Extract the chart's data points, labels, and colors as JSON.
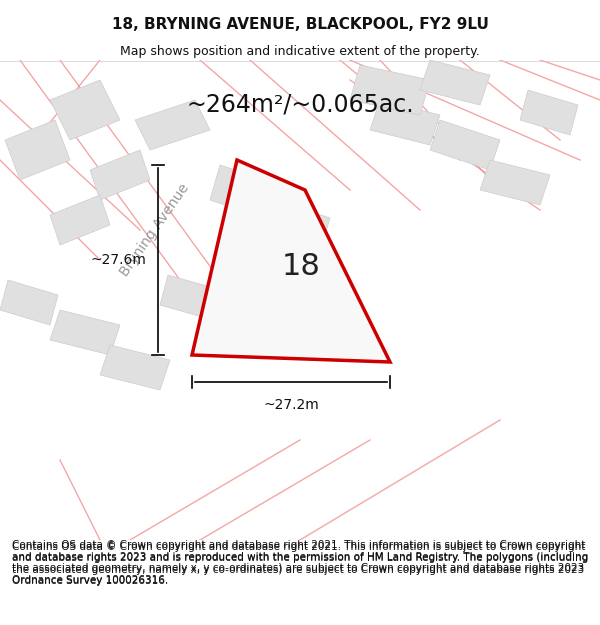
{
  "title": "18, BRYNING AVENUE, BLACKPOOL, FY2 9LU",
  "subtitle": "Map shows position and indicative extent of the property.",
  "area_text": "~264m²/~0.065ac.",
  "number_label": "18",
  "dim_vertical": "~27.6m",
  "dim_horizontal": "~27.2m",
  "street_label": "Bryning Avenue",
  "copyright_text": "Contains OS data © Crown copyright and database right 2021. This information is subject to Crown copyright and database rights 2023 and is reproduced with the permission of HM Land Registry. The polygons (including the associated geometry, namely x, y co-ordinates) are subject to Crown copyright and database rights 2023 Ordnance Survey 100026316.",
  "bg_color": "#f5f5f5",
  "map_bg": "#f0f0f0",
  "plot_color_fill": "#f0f0f0",
  "plot_border_color": "#cc0000",
  "neighbor_fill": "#e0e0e0",
  "road_line_color": "#f08080",
  "title_fontsize": 11,
  "subtitle_fontsize": 9,
  "area_fontsize": 17,
  "label_fontsize": 22,
  "dim_fontsize": 10,
  "street_fontsize": 10,
  "copyright_fontsize": 7.5
}
